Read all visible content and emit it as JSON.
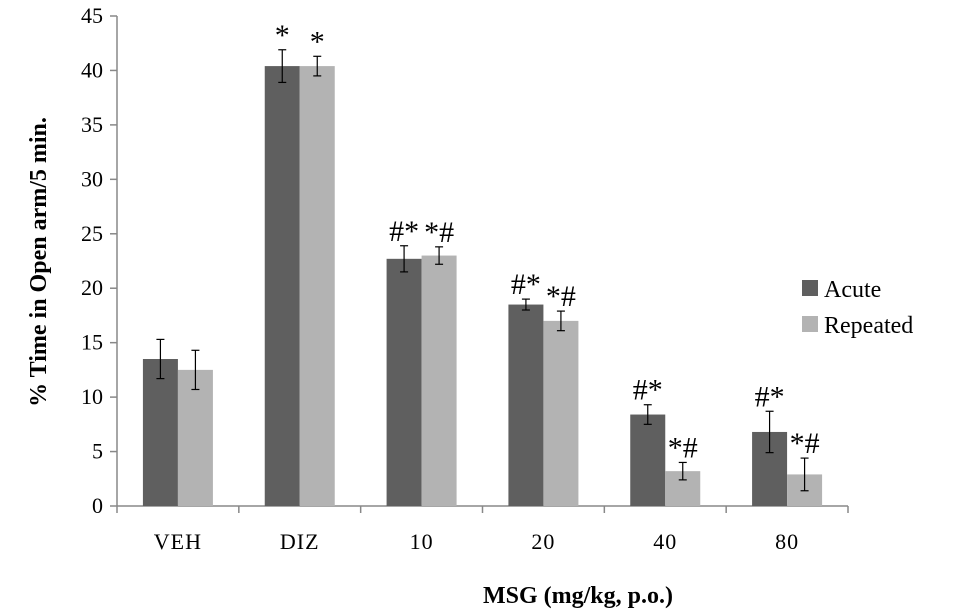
{
  "chart_data": {
    "type": "bar",
    "title": "",
    "xlabel": "MSG (mg/kg, p.o.)",
    "ylabel": "% Time in Open arm/5 min.",
    "ylim": [
      0,
      45
    ],
    "yticks": [
      0,
      5,
      10,
      15,
      20,
      25,
      30,
      35,
      40,
      45
    ],
    "grid": false,
    "legend_position": "right",
    "categories": [
      "VEH",
      "DIZ",
      "10",
      "20",
      "40",
      "80"
    ],
    "series": [
      {
        "name": "Acute",
        "color": "#5f5f5f",
        "values": [
          13.5,
          40.4,
          22.7,
          18.5,
          8.4,
          6.8
        ],
        "errors": [
          1.8,
          1.5,
          1.2,
          0.5,
          0.9,
          1.9
        ],
        "annotations": [
          "",
          "*",
          "#*",
          "#*",
          "#*",
          "#*"
        ]
      },
      {
        "name": "Repeated",
        "color": "#b3b3b3",
        "values": [
          12.5,
          40.4,
          23.0,
          17.0,
          3.2,
          2.9
        ],
        "errors": [
          1.8,
          0.9,
          0.8,
          0.9,
          0.8,
          1.5
        ],
        "annotations": [
          "",
          "*",
          "*#",
          "*#",
          "*#",
          "*#"
        ]
      }
    ]
  }
}
